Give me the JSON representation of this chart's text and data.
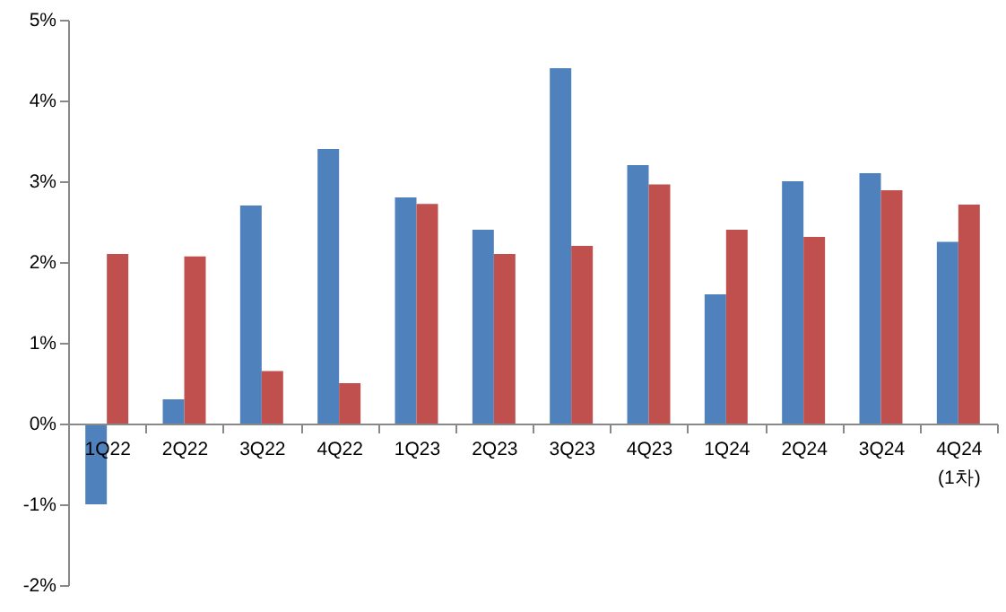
{
  "chart_data": {
    "type": "bar",
    "categories": [
      "1Q22",
      "2Q22",
      "3Q22",
      "4Q22",
      "1Q23",
      "2Q23",
      "3Q23",
      "4Q23",
      "1Q24",
      "2Q24",
      "3Q24",
      "4Q24 (1차)"
    ],
    "series": [
      {
        "color": "#4f81bd",
        "values": [
          -1.0,
          0.3,
          2.7,
          3.4,
          2.8,
          2.4,
          4.4,
          3.2,
          1.6,
          3.0,
          3.1,
          2.25
        ]
      },
      {
        "color": "#c0504d",
        "values": [
          2.1,
          2.07,
          0.65,
          0.5,
          2.72,
          2.1,
          2.2,
          2.96,
          2.4,
          2.31,
          2.89,
          2.71
        ]
      }
    ],
    "ylim": [
      -2,
      5
    ],
    "yticks": [
      {
        "value": -2,
        "label": "-2%"
      },
      {
        "value": -1,
        "label": "-1%"
      },
      {
        "value": 0,
        "label": "0%"
      },
      {
        "value": 1,
        "label": "1%"
      },
      {
        "value": 2,
        "label": "2%"
      },
      {
        "value": 3,
        "label": "3%"
      },
      {
        "value": 4,
        "label": "4%"
      },
      {
        "value": 5,
        "label": "5%"
      }
    ],
    "grid": false
  }
}
